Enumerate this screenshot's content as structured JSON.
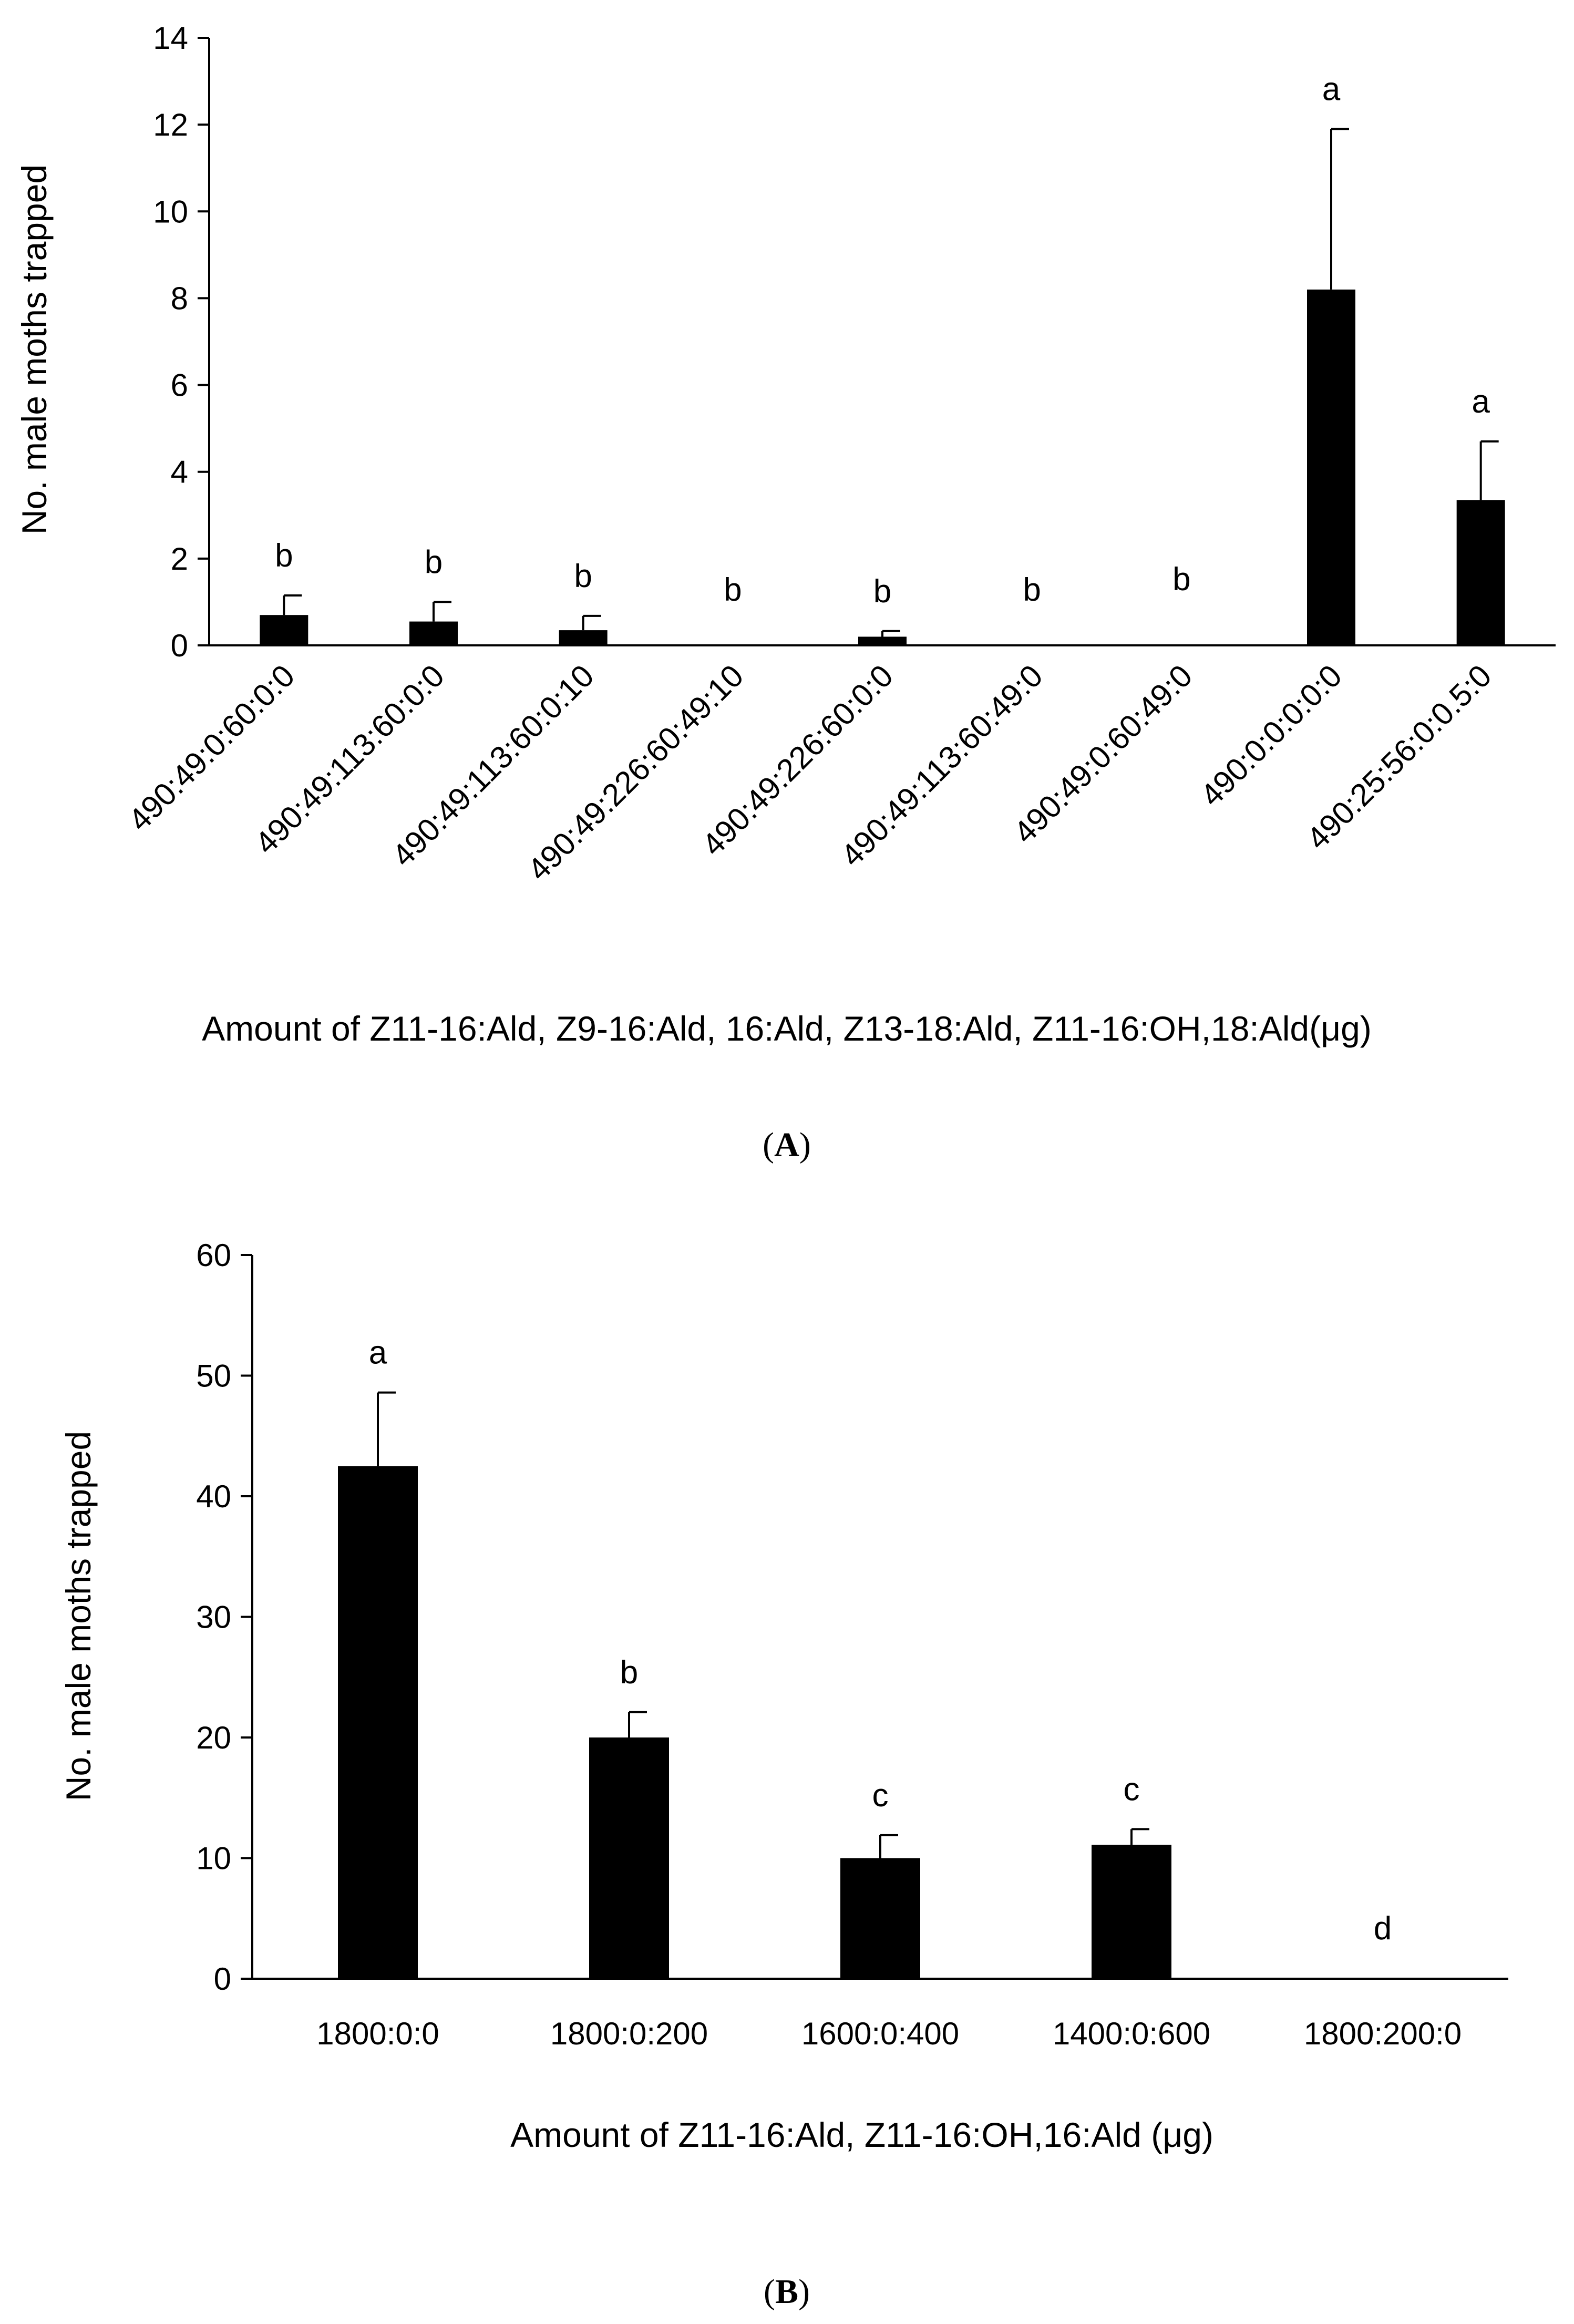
{
  "chart_data": [
    {
      "type": "bar",
      "panel_label": "A",
      "title": "",
      "xlabel": "Amount of Z11-16:Ald, Z9-16:Ald, 16:Ald, Z13-18:Ald, Z11-16:OH,18:Ald(μg)",
      "ylabel": "No. male moths trapped",
      "ylim": [
        0,
        14
      ],
      "yticks": [
        "0",
        "2",
        "4",
        "6",
        "8",
        "10",
        "12",
        "14"
      ],
      "categories": [
        "490:49:0:60:0:0",
        "490:49:113:60:0:0",
        "490:49:113:60:0:10",
        "490:49:226:60:49:10",
        "490:49:226:60:0:0",
        "490:49:113:60:49:0",
        "490:49:0:60:49:0",
        "490:0:0:0:0:0",
        "490:25:56:0:0.5:0"
      ],
      "values": [
        0.7,
        0.55,
        0.35,
        0,
        0.2,
        0,
        0,
        8.2,
        3.35
      ],
      "error_upper": [
        1.15,
        1.0,
        0.68,
        0,
        0.33,
        0,
        0,
        11.9,
        4.7
      ],
      "letters": [
        "b",
        "b",
        "b",
        "b",
        "b",
        "b",
        "b",
        "a",
        "a"
      ],
      "grid": false,
      "legend": "none",
      "color": "#000000"
    },
    {
      "type": "bar",
      "panel_label": "B",
      "title": "",
      "xlabel": "Amount of Z11-16:Ald, Z11-16:OH,16:Ald (μg)",
      "ylabel": "No. male moths trapped",
      "ylim": [
        0,
        60
      ],
      "yticks": [
        "0",
        "10",
        "20",
        "30",
        "40",
        "50",
        "60"
      ],
      "categories": [
        "1800:0:0",
        "1800:0:200",
        "1600:0:400",
        "1400:0:600",
        "1800:200:0"
      ],
      "values": [
        42.5,
        20,
        10,
        11.1,
        0
      ],
      "error_upper": [
        48.6,
        22.1,
        11.9,
        12.4,
        0
      ],
      "letters": [
        "a",
        "b",
        "c",
        "c",
        "d"
      ],
      "grid": false,
      "legend": "none",
      "color": "#000000"
    }
  ]
}
